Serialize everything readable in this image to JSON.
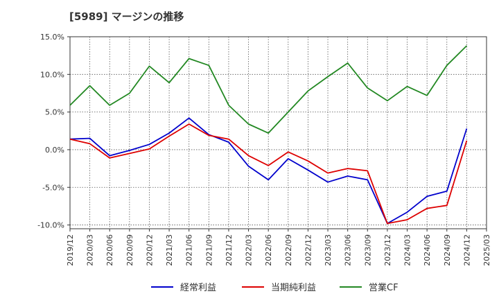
{
  "chart_data": {
    "type": "line",
    "title": "[5989]  マージンの推移",
    "xlabel": "",
    "ylabel": "",
    "categories": [
      "2019/12",
      "2020/03",
      "2020/06",
      "2020/09",
      "2020/12",
      "2021/03",
      "2021/06",
      "2021/09",
      "2021/12",
      "2022/03",
      "2022/06",
      "2022/09",
      "2022/12",
      "2023/03",
      "2023/06",
      "2023/09",
      "2023/12",
      "2024/03",
      "2024/06",
      "2024/09",
      "2024/12",
      "2025/03"
    ],
    "ylim": [
      -10.5,
      15.0
    ],
    "yticks": [
      15.0,
      10.0,
      5.0,
      0.0,
      -5.0,
      -10.0
    ],
    "ytick_labels": [
      "15.0%",
      "10.0%",
      "5.0%",
      "0.0%",
      "-5.0%",
      "-10.0%"
    ],
    "grid": true,
    "legend_position": "bottom",
    "series": [
      {
        "name": "経常利益",
        "color": "#0000cc",
        "values": [
          1.4,
          1.5,
          -0.8,
          -0.1,
          0.7,
          2.2,
          4.2,
          2.0,
          1.0,
          -2.2,
          -4.0,
          -1.2,
          -2.7,
          -4.3,
          -3.5,
          -4.0,
          -9.8,
          -8.3,
          -6.2,
          -5.5,
          2.8,
          null
        ]
      },
      {
        "name": "当期純利益",
        "color": "#dd0000",
        "values": [
          1.4,
          0.8,
          -1.1,
          -0.5,
          0.1,
          1.8,
          3.4,
          1.9,
          1.4,
          -0.8,
          -2.1,
          -0.3,
          -1.5,
          -3.1,
          -2.5,
          -2.8,
          -9.8,
          -9.3,
          -7.8,
          -7.4,
          1.2,
          null
        ]
      },
      {
        "name": "営業CF",
        "color": "#228822",
        "values": [
          5.9,
          8.5,
          5.9,
          7.5,
          11.1,
          8.9,
          12.1,
          11.2,
          5.9,
          3.4,
          2.2,
          5.0,
          7.8,
          9.7,
          11.5,
          8.2,
          6.5,
          8.4,
          7.2,
          11.2,
          13.8,
          null
        ]
      }
    ]
  }
}
